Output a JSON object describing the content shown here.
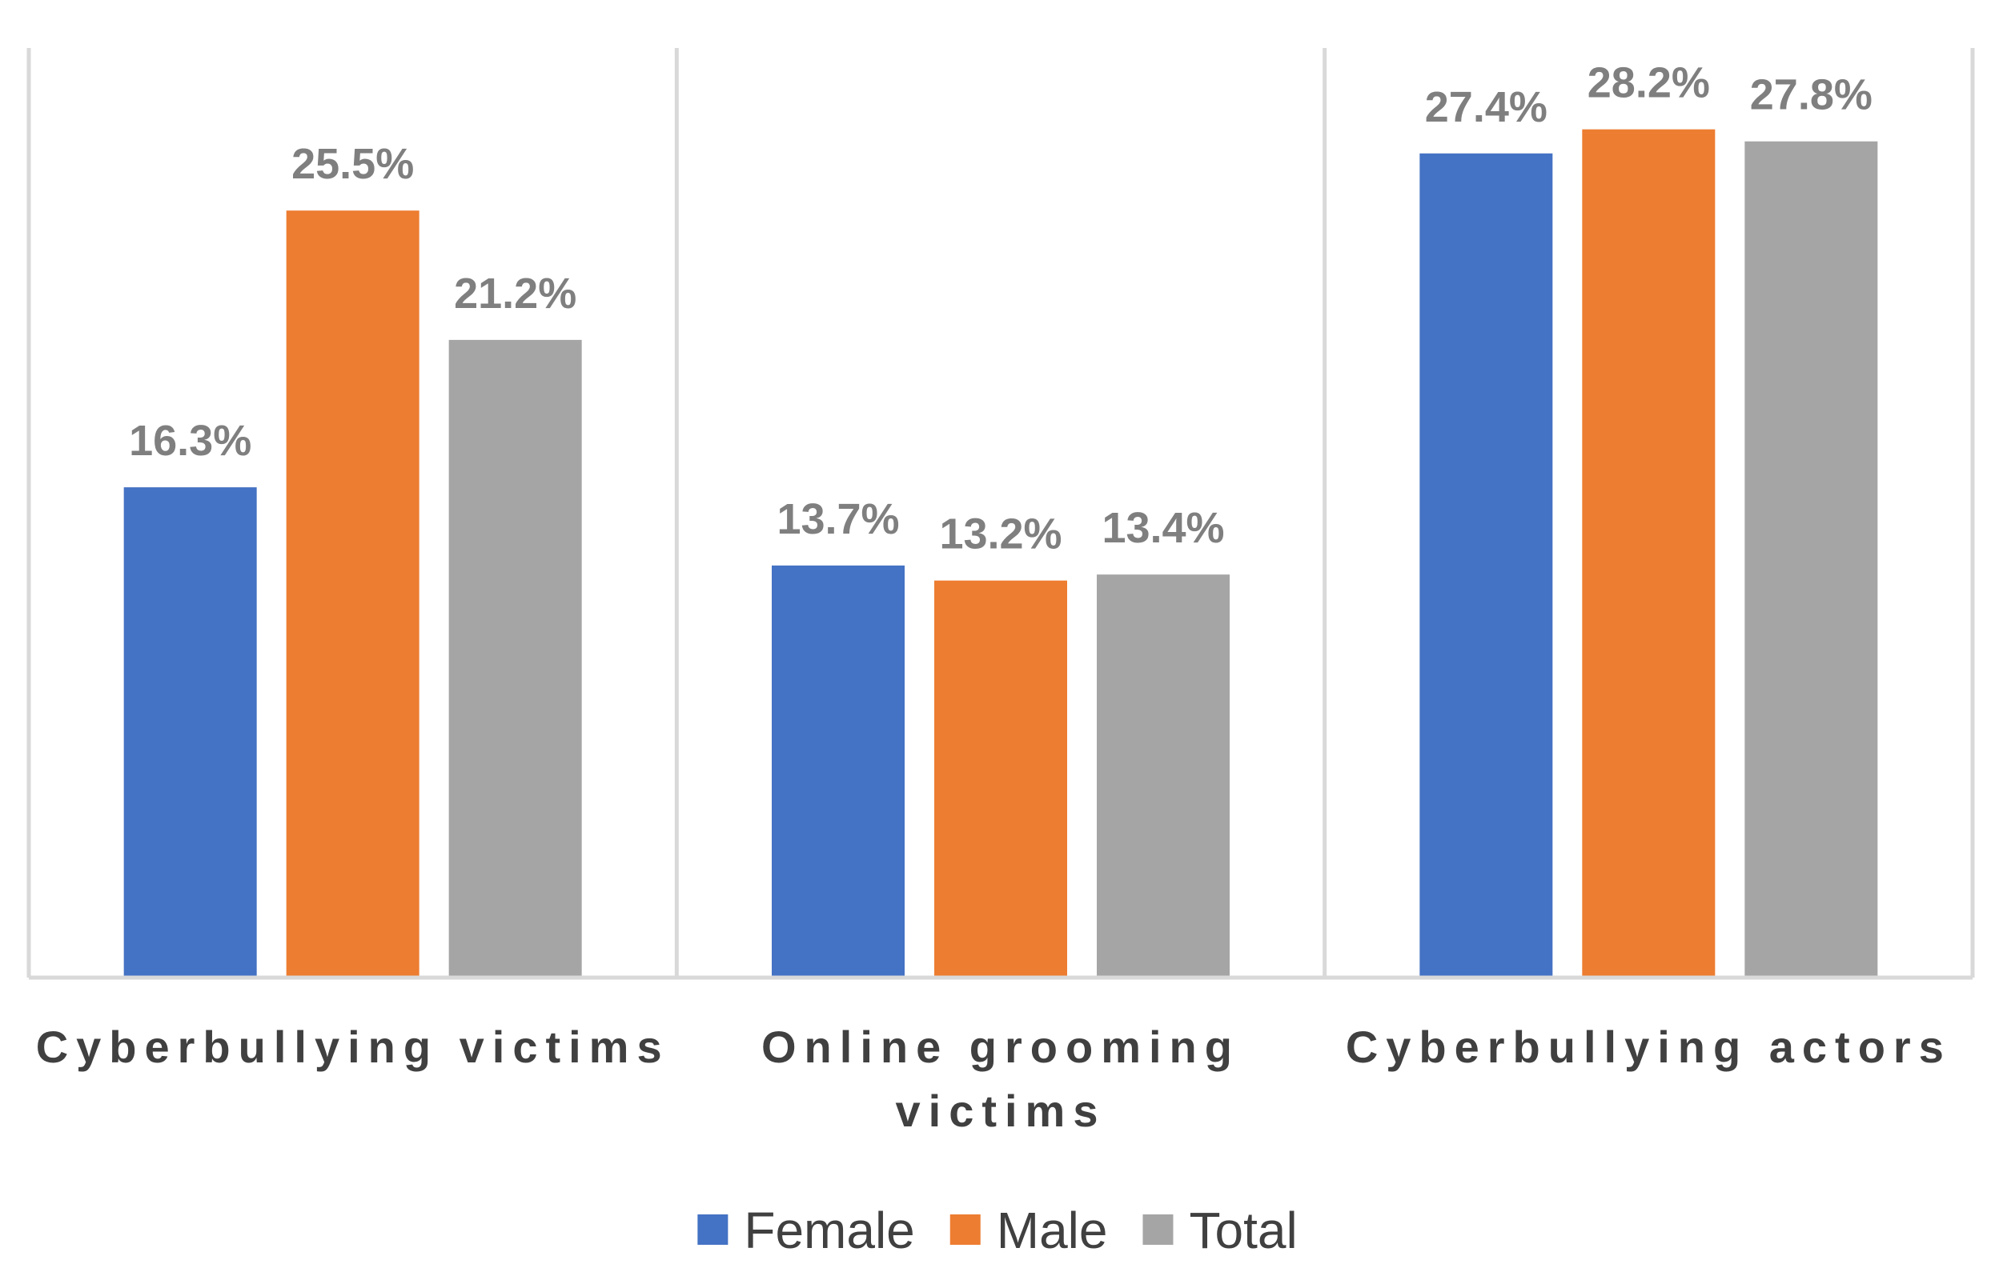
{
  "chart_data": {
    "type": "bar",
    "categories": [
      [
        "Cyberbullying victims"
      ],
      [
        "Online grooming",
        "victims"
      ],
      [
        "Cyberbullying actors"
      ]
    ],
    "series": [
      {
        "name": "Female",
        "color": "#4472c4",
        "values": [
          16.3,
          13.7,
          27.4
        ],
        "labels": [
          "16.3%",
          "13.7%",
          "27.4%"
        ]
      },
      {
        "name": "Male",
        "color": "#ed7d31",
        "values": [
          25.5,
          13.2,
          28.2
        ],
        "labels": [
          "25.5%",
          "13.2%",
          "28.2%"
        ]
      },
      {
        "name": "Total",
        "color": "#a5a5a5",
        "values": [
          21.2,
          13.4,
          27.8
        ],
        "labels": [
          "21.2%",
          "13.4%",
          "27.8%"
        ]
      }
    ],
    "ylim": [
      0,
      30
    ],
    "value_unit": "%",
    "grid": "vertical category separators",
    "legend_position": "bottom"
  }
}
